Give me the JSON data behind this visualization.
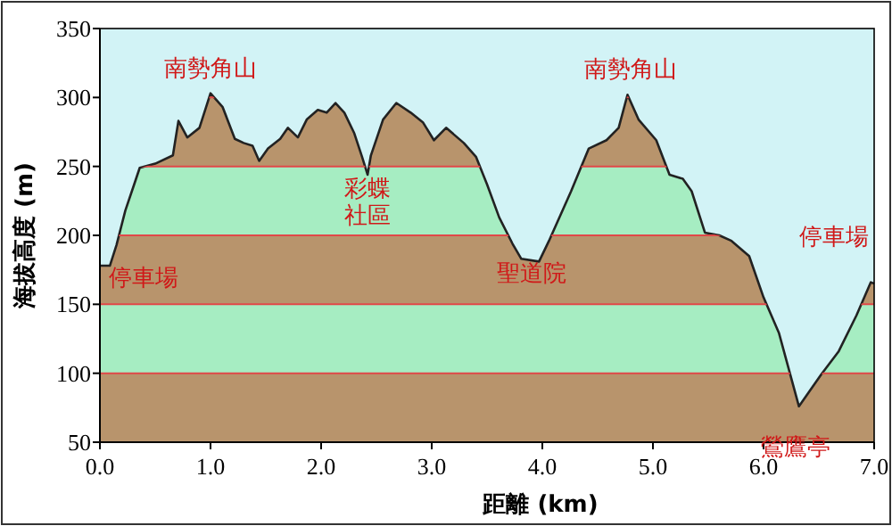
{
  "chart_data": {
    "type": "area",
    "xlabel": "距離 (km)",
    "ylabel": "海拔高度 (m)",
    "xlim": [
      0,
      7
    ],
    "xticks": [
      {
        "value": 0,
        "label": "0.0"
      },
      {
        "value": 1,
        "label": "1.0"
      },
      {
        "value": 2,
        "label": "2.0"
      },
      {
        "value": 3,
        "label": "3.0"
      },
      {
        "value": 4,
        "label": "4.0"
      },
      {
        "value": 5,
        "label": "5.0"
      },
      {
        "value": 6,
        "label": "6.0"
      },
      {
        "value": 7,
        "label": "7.0"
      }
    ],
    "ylim": [
      50,
      350
    ],
    "yticks": [
      50,
      100,
      150,
      200,
      250,
      300,
      350
    ],
    "x": [
      0,
      0.09,
      0.15,
      0.23,
      0.31,
      0.36,
      0.5,
      0.66,
      0.71,
      0.79,
      0.9,
      1.0,
      1.11,
      1.22,
      1.3,
      1.38,
      1.44,
      1.52,
      1.63,
      1.7,
      1.79,
      1.87,
      1.97,
      2.05,
      2.13,
      2.21,
      2.3,
      2.37,
      2.42,
      2.45,
      2.56,
      2.68,
      2.81,
      2.92,
      3.02,
      3.13,
      3.29,
      3.4,
      3.5,
      3.61,
      3.73,
      3.81,
      3.97,
      4.06,
      4.26,
      4.42,
      4.58,
      4.69,
      4.77,
      4.87,
      5.03,
      5.15,
      5.27,
      5.35,
      5.47,
      5.6,
      5.71,
      5.87,
      6.0,
      6.14,
      6.32,
      6.52,
      6.68,
      6.84,
      6.97,
      7.0
    ],
    "series": [
      {
        "color": "#b8946c",
        "values": [
          178,
          178,
          193,
          218,
          237,
          249,
          252,
          258,
          283,
          271,
          278,
          303,
          293,
          270,
          267,
          265,
          254,
          263,
          270,
          278,
          271,
          284,
          291,
          289,
          296,
          289,
          274,
          257,
          244,
          258,
          284,
          296,
          289,
          282,
          269,
          278,
          267,
          257,
          237,
          213,
          194,
          183,
          181,
          196,
          232,
          263,
          269,
          278,
          302,
          284,
          269,
          244,
          241,
          232,
          202,
          200,
          196,
          185,
          155,
          129,
          76,
          99,
          116,
          142,
          166,
          165
        ]
      }
    ],
    "bands": [
      {
        "axis": "y",
        "from": 100,
        "to": 150,
        "color": "#a6edc2"
      },
      {
        "axis": "y",
        "from": 200,
        "to": 250,
        "color": "#a6edc2"
      }
    ],
    "grid": "y",
    "annotations": [
      {
        "text": "南勢角山",
        "x": 1.0,
        "y": 303
      },
      {
        "text": "彩蝶社區",
        "x": 2.42,
        "y": 244
      },
      {
        "text": "停車場",
        "x": 0,
        "y": 178
      },
      {
        "text": "聖道院",
        "x": 3.97,
        "y": 181
      },
      {
        "text": "南勢角山",
        "x": 4.77,
        "y": 302
      },
      {
        "text": "停車場",
        "x": 7.0,
        "y": 165
      },
      {
        "text": "鶯鷹亭",
        "x": 6.32,
        "y": 76
      }
    ]
  }
}
